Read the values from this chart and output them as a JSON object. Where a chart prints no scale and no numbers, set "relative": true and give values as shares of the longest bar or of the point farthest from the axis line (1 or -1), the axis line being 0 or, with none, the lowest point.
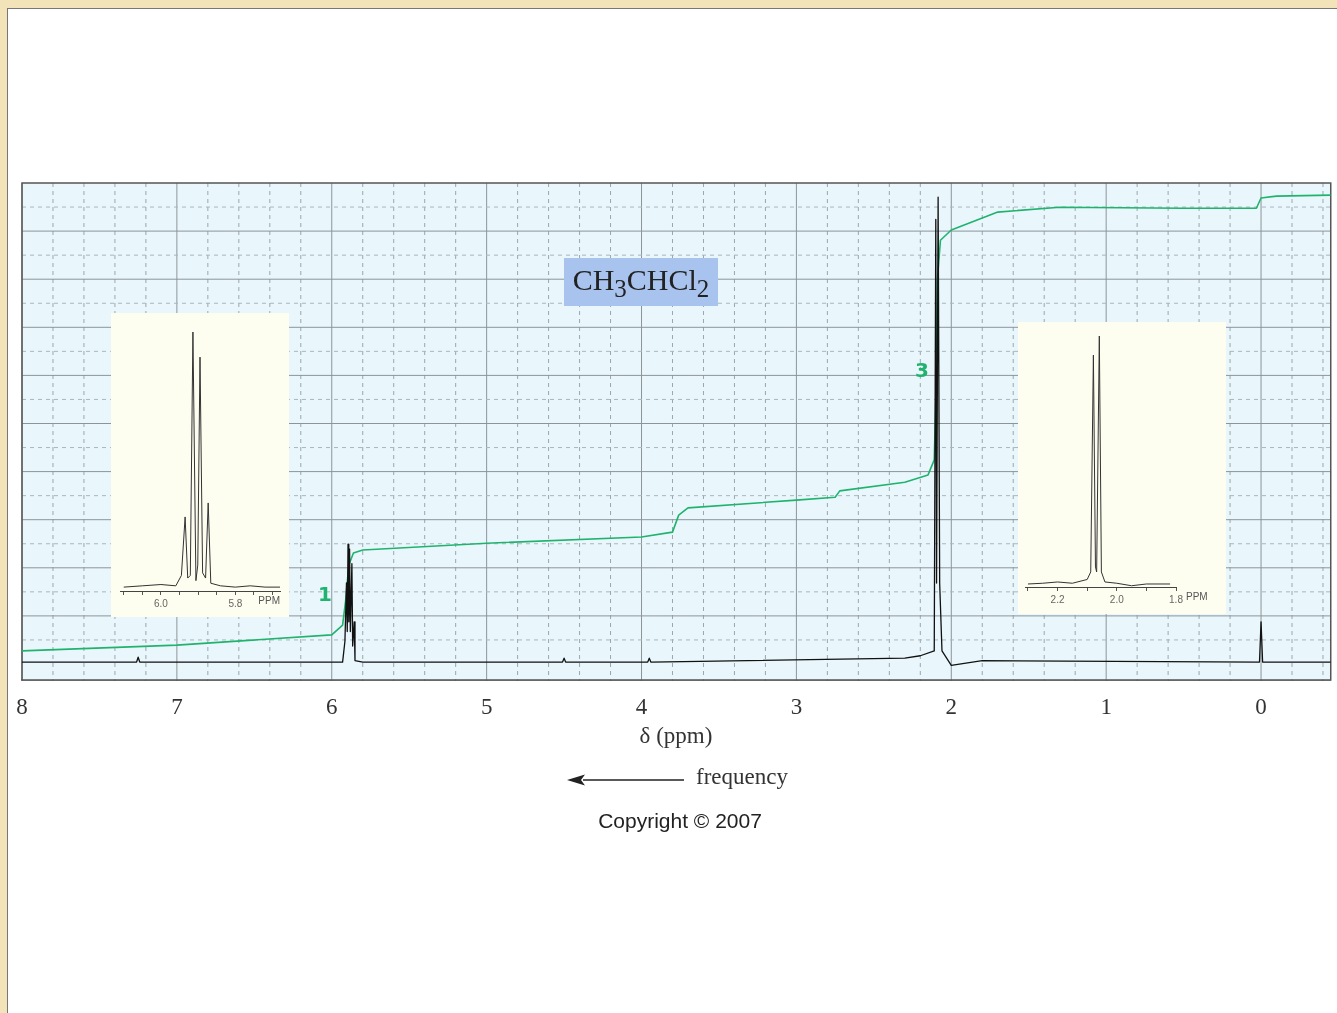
{
  "chart_data": [
    {
      "type": "line",
      "relative": true,
      "xlabel": "δ (ppm)",
      "grid": true,
      "tick_labels": "x",
      "xlim": [
        8,
        -0.45
      ],
      "xticks": [
        8,
        {
          "value": 7.8,
          "label": null
        },
        {
          "value": 7.6,
          "label": null
        },
        {
          "value": 7.4,
          "label": null
        },
        {
          "value": 7.2,
          "label": null
        },
        7,
        {
          "value": 6.8,
          "label": null
        },
        {
          "value": 6.6,
          "label": null
        },
        {
          "value": 6.4,
          "label": null
        },
        {
          "value": 6.2,
          "label": null
        },
        6,
        {
          "value": 5.8,
          "label": null
        },
        {
          "value": 5.6,
          "label": null
        },
        {
          "value": 5.4,
          "label": null
        },
        {
          "value": 5.2,
          "label": null
        },
        5,
        {
          "value": 4.8,
          "label": null
        },
        {
          "value": 4.6,
          "label": null
        },
        {
          "value": 4.4,
          "label": null
        },
        {
          "value": 4.2,
          "label": null
        },
        4,
        {
          "value": 3.8,
          "label": null
        },
        {
          "value": 3.6,
          "label": null
        },
        {
          "value": 3.4,
          "label": null
        },
        {
          "value": 3.2,
          "label": null
        },
        3,
        {
          "value": 2.8,
          "label": null
        },
        {
          "value": 2.6,
          "label": null
        },
        {
          "value": 2.4,
          "label": null
        },
        {
          "value": 2.2,
          "label": null
        },
        2,
        {
          "value": 1.8,
          "label": null
        },
        {
          "value": 1.6,
          "label": null
        },
        {
          "value": 1.4,
          "label": null
        },
        {
          "value": 1.2,
          "label": null
        },
        1,
        {
          "value": 0.8,
          "label": null
        },
        {
          "value": 0.6,
          "label": null
        },
        {
          "value": 0.4,
          "label": null
        },
        {
          "value": 0.2,
          "label": null
        },
        0,
        {
          "value": -0.2,
          "label": null
        },
        {
          "value": -0.4,
          "label": null
        }
      ],
      "series": [
        {
          "color": "#111111",
          "x": [
            8,
            7.26,
            7.25,
            7.24,
            6.0,
            5.93,
            5.915,
            5.905,
            5.9,
            5.895,
            5.89,
            5.885,
            5.88,
            5.87,
            5.865,
            5.855,
            5.85,
            5.8,
            4.51,
            4.5,
            4.49,
            3.96,
            3.95,
            3.94,
            2.3,
            2.2,
            2.11,
            2.1,
            2.095,
            2.085,
            2.075,
            2.06,
            2.0,
            1.8,
            0.01,
            0,
            -0.01,
            -0.45
          ],
          "values": [
            0.037,
            0.037,
            0.047,
            0.037,
            0.037,
            0.037,
            0.08,
            0.2,
            0.1,
            0.28,
            0.12,
            0.27,
            0.1,
            0.24,
            0.07,
            0.12,
            0.04,
            0.037,
            0.037,
            0.045,
            0.037,
            0.037,
            0.045,
            0.037,
            0.045,
            0.05,
            0.06,
            0.95,
            0.2,
            0.996,
            0.2,
            0.06,
            0.03,
            0.04,
            0.037,
            0.12,
            0.037,
            0.037
          ]
        },
        {
          "color": "#1fb36e",
          "x": [
            8,
            7,
            6,
            5.93,
            5.91,
            5.89,
            5.86,
            5.8,
            5,
            4,
            3.8,
            3.76,
            3.7,
            3,
            2.75,
            2.72,
            2.3,
            2.15,
            2.11,
            2.1,
            2.09,
            2.07,
            2,
            1.7,
            1.3,
            0.5,
            0.03,
            0,
            -0.1,
            -0.45
          ],
          "values": [
            0.06,
            0.072,
            0.093,
            0.113,
            0.165,
            0.237,
            0.262,
            0.268,
            0.282,
            0.295,
            0.305,
            0.34,
            0.355,
            0.371,
            0.377,
            0.39,
            0.408,
            0.423,
            0.454,
            0.577,
            0.825,
            0.907,
            0.928,
            0.965,
            0.975,
            0.973,
            0.973,
            0.994,
            0.998,
            1.0
          ]
        }
      ],
      "annotations": [
        "CH$_{3}$CHCl$_{2}$",
        "frequency",
        "Copyright © 2007",
        "1",
        "3"
      ]
    },
    {
      "type": "line",
      "relative": true,
      "xlabel": "PPM",
      "tick_labels": "x",
      "xlim": [
        6.11,
        5.68
      ],
      "xticks": [
        {
          "value": 6.1,
          "label": null
        },
        {
          "value": 6.05,
          "label": null
        },
        {
          "value": 6.0,
          "label": "6.0"
        },
        {
          "value": 5.95,
          "label": null
        },
        {
          "value": 5.9,
          "label": null
        },
        {
          "value": 5.85,
          "label": null
        },
        {
          "value": 5.8,
          "label": "5.8"
        },
        {
          "value": 5.75,
          "label": null
        },
        {
          "value": 5.7,
          "label": null
        }
      ],
      "series": [
        {
          "color": "#333333",
          "x": [
            6.1,
            6.05,
            6.0,
            5.96,
            5.945,
            5.935,
            5.928,
            5.921,
            5.914,
            5.906,
            5.901,
            5.895,
            5.888,
            5.88,
            5.873,
            5.866,
            5.84,
            5.8,
            5.76,
            5.72,
            5.68
          ],
          "values": [
            0.015,
            0.02,
            0.025,
            0.02,
            0.06,
            0.286,
            0.05,
            0.06,
            1.0,
            0.04,
            0.1,
            0.903,
            0.07,
            0.05,
            0.34,
            0.03,
            0.02,
            0.015,
            0.02,
            0.015,
            0.015
          ]
        }
      ]
    },
    {
      "type": "line",
      "relative": true,
      "xlabel": "PPM",
      "tick_labels": "x",
      "xlim": [
        2.31,
        1.8
      ],
      "xticks": [
        {
          "value": 2.3,
          "label": null
        },
        {
          "value": 2.2,
          "label": "2.2"
        },
        {
          "value": 2.1,
          "label": null
        },
        {
          "value": 2.0,
          "label": "2.0"
        },
        {
          "value": 1.9,
          "label": null
        },
        {
          "value": 1.8,
          "label": "1.8"
        }
      ],
      "series": [
        {
          "color": "#333333",
          "x": [
            2.3,
            2.25,
            2.2,
            2.15,
            2.1,
            2.088,
            2.079,
            2.072,
            2.068,
            2.059,
            2.052,
            2.04,
            2.0,
            1.95,
            1.9,
            1.82
          ],
          "values": [
            0.012,
            0.015,
            0.02,
            0.015,
            0.03,
            0.06,
            0.924,
            0.08,
            0.06,
            1.0,
            0.06,
            0.02,
            0.015,
            0.005,
            0.012,
            0.012
          ]
        }
      ]
    }
  ]
}
